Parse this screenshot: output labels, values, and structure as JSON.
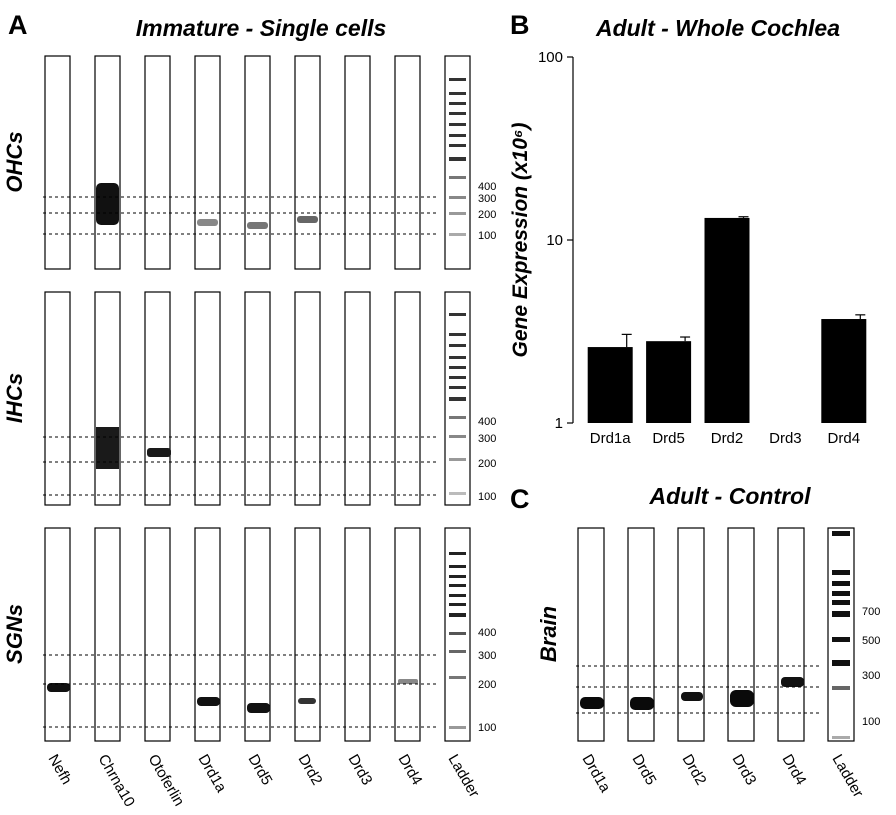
{
  "panelA": {
    "letter": "A",
    "title": "Immature - Single cells",
    "lanes": [
      "Nefh",
      "Chrna10",
      "Otoferlin",
      "Drd1a",
      "Drd5",
      "Drd2",
      "Drd3",
      "Drd4",
      "Ladder"
    ],
    "rows": [
      {
        "label": "OHCs",
        "markers": [
          "400",
          "300",
          "200",
          "100"
        ]
      },
      {
        "label": "IHCs",
        "markers": [
          "400",
          "300",
          "200",
          "100"
        ]
      },
      {
        "label": "SGNs",
        "markers": [
          "400",
          "300",
          "200",
          "100"
        ]
      }
    ]
  },
  "panelB": {
    "letter": "B",
    "title": "Adult - Whole Cochlea",
    "chart_data": {
      "type": "bar",
      "categories": [
        "Drd1a",
        "Drd5",
        "Drd2",
        "Drd3",
        "Drd4"
      ],
      "values": [
        2.6,
        2.8,
        13.2,
        0,
        3.7
      ],
      "errors": [
        0.45,
        0.15,
        0.2,
        0,
        0.2
      ],
      "ylabel": "Gene Expression (x10⁶)",
      "yscale": "log",
      "ylim": [
        1,
        100
      ],
      "yticks": [
        "1",
        "10",
        "100"
      ],
      "color": "#000000"
    }
  },
  "panelC": {
    "letter": "C",
    "title": "Adult - Control",
    "row_label": "Brain",
    "lanes": [
      "Drd1a",
      "Drd5",
      "Drd2",
      "Drd3",
      "Drd4",
      "Ladder"
    ],
    "markers": [
      "700",
      "500",
      "300",
      "100"
    ]
  }
}
